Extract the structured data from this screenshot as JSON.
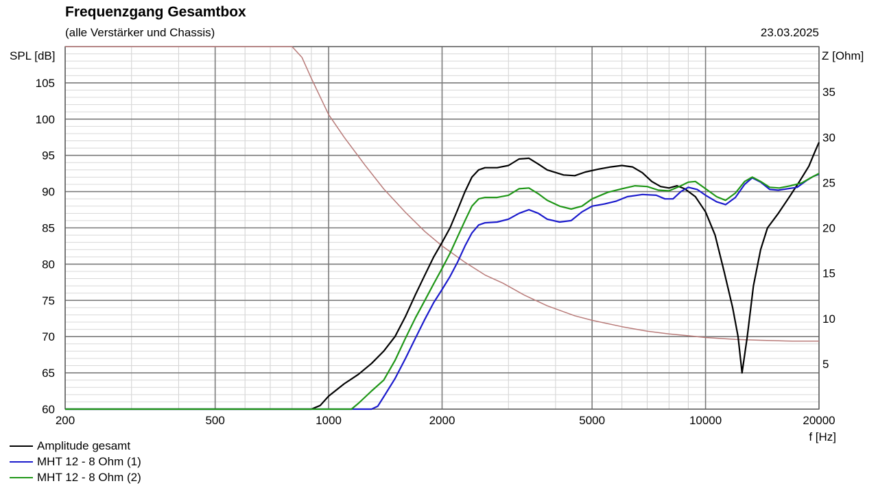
{
  "header": {
    "title": "Frequenzgang Gesamtbox",
    "subtitle": "(alle Verstärker und Chassis)",
    "date": "23.03.2025"
  },
  "chart_data": {
    "type": "line",
    "title": "Frequenzgang Gesamtbox",
    "subtitle": "(alle Verstärker und Chassis)",
    "xlabel": "f [Hz]",
    "ylabel": "SPL [dB]",
    "y2label": "Z [Ohm]",
    "xscale": "log",
    "xlim": [
      200,
      20000
    ],
    "ylim": [
      60,
      110
    ],
    "y2lim": [
      0,
      40
    ],
    "xticks": [
      200,
      500,
      1000,
      2000,
      5000,
      10000,
      20000
    ],
    "xtick_labels": [
      "200",
      "500",
      "1000",
      "2000",
      "5000",
      "10000",
      "20000"
    ],
    "yticks": [
      60,
      65,
      70,
      75,
      80,
      85,
      90,
      95,
      100,
      105
    ],
    "y2ticks": [
      5,
      10,
      15,
      20,
      25,
      30,
      35
    ],
    "grid": true,
    "legend_position": "bottom-left",
    "series": [
      {
        "name": "Amplitude gesamt",
        "color": "#000000",
        "axis": "left",
        "points": [
          [
            200,
            60
          ],
          [
            900,
            60
          ],
          [
            950,
            60.5
          ],
          [
            1000,
            61.8
          ],
          [
            1100,
            63.5
          ],
          [
            1200,
            64.8
          ],
          [
            1300,
            66.3
          ],
          [
            1400,
            68
          ],
          [
            1500,
            70
          ],
          [
            1600,
            72.8
          ],
          [
            1700,
            75.8
          ],
          [
            1800,
            78.5
          ],
          [
            1900,
            81
          ],
          [
            2000,
            83
          ],
          [
            2100,
            85
          ],
          [
            2200,
            87.5
          ],
          [
            2300,
            90
          ],
          [
            2400,
            92
          ],
          [
            2500,
            93
          ],
          [
            2600,
            93.3
          ],
          [
            2800,
            93.3
          ],
          [
            3000,
            93.6
          ],
          [
            3200,
            94.5
          ],
          [
            3400,
            94.6
          ],
          [
            3600,
            93.8
          ],
          [
            3800,
            93
          ],
          [
            4200,
            92.3
          ],
          [
            4500,
            92.2
          ],
          [
            4800,
            92.7
          ],
          [
            5200,
            93.1
          ],
          [
            5600,
            93.4
          ],
          [
            6000,
            93.6
          ],
          [
            6400,
            93.4
          ],
          [
            6800,
            92.6
          ],
          [
            7200,
            91.4
          ],
          [
            7600,
            90.7
          ],
          [
            8000,
            90.5
          ],
          [
            8400,
            90.8
          ],
          [
            8800,
            90.4
          ],
          [
            9400,
            89.3
          ],
          [
            10000,
            87.2
          ],
          [
            10600,
            84
          ],
          [
            11200,
            79
          ],
          [
            11800,
            74
          ],
          [
            12200,
            70
          ],
          [
            12500,
            65
          ],
          [
            12900,
            70
          ],
          [
            13400,
            77
          ],
          [
            14000,
            82
          ],
          [
            14600,
            85
          ],
          [
            15600,
            87
          ],
          [
            16800,
            89.5
          ],
          [
            17800,
            91.5
          ],
          [
            18800,
            93.5
          ],
          [
            19500,
            95.5
          ],
          [
            20000,
            96.8
          ]
        ]
      },
      {
        "name": "MHT 12 - 8 Ohm (1)",
        "color": "#1a1acc",
        "axis": "left",
        "points": [
          [
            200,
            60
          ],
          [
            1300,
            60
          ],
          [
            1350,
            60.4
          ],
          [
            1400,
            61.7
          ],
          [
            1500,
            64.2
          ],
          [
            1600,
            67
          ],
          [
            1700,
            69.8
          ],
          [
            1800,
            72.4
          ],
          [
            1900,
            74.7
          ],
          [
            2000,
            76.5
          ],
          [
            2100,
            78.3
          ],
          [
            2200,
            80.3
          ],
          [
            2300,
            82.5
          ],
          [
            2400,
            84.3
          ],
          [
            2500,
            85.4
          ],
          [
            2600,
            85.7
          ],
          [
            2800,
            85.8
          ],
          [
            3000,
            86.2
          ],
          [
            3200,
            87
          ],
          [
            3400,
            87.5
          ],
          [
            3600,
            87
          ],
          [
            3800,
            86.2
          ],
          [
            4100,
            85.8
          ],
          [
            4400,
            86
          ],
          [
            4700,
            87.2
          ],
          [
            5000,
            88
          ],
          [
            5400,
            88.3
          ],
          [
            5800,
            88.7
          ],
          [
            6200,
            89.3
          ],
          [
            6800,
            89.6
          ],
          [
            7400,
            89.5
          ],
          [
            7800,
            89
          ],
          [
            8200,
            89
          ],
          [
            8600,
            90
          ],
          [
            9000,
            90.6
          ],
          [
            9500,
            90.3
          ],
          [
            10000,
            89.5
          ],
          [
            10700,
            88.6
          ],
          [
            11300,
            88.2
          ],
          [
            12000,
            89.2
          ],
          [
            12700,
            91
          ],
          [
            13300,
            91.9
          ],
          [
            14000,
            91.3
          ],
          [
            14800,
            90.3
          ],
          [
            15600,
            90.2
          ],
          [
            16500,
            90.4
          ],
          [
            17500,
            90.6
          ],
          [
            18500,
            91.5
          ],
          [
            19300,
            92.1
          ],
          [
            20000,
            92.4
          ]
        ]
      },
      {
        "name": "MHT 12 - 8 Ohm (2)",
        "color": "#1e9616",
        "axis": "left",
        "points": [
          [
            200,
            60
          ],
          [
            1150,
            60
          ],
          [
            1200,
            60.8
          ],
          [
            1300,
            62.5
          ],
          [
            1400,
            64
          ],
          [
            1500,
            66.7
          ],
          [
            1600,
            69.8
          ],
          [
            1700,
            72.6
          ],
          [
            1800,
            75
          ],
          [
            1900,
            77.3
          ],
          [
            2000,
            79.4
          ],
          [
            2100,
            81.5
          ],
          [
            2200,
            83.8
          ],
          [
            2300,
            86
          ],
          [
            2400,
            88
          ],
          [
            2500,
            89
          ],
          [
            2600,
            89.2
          ],
          [
            2800,
            89.2
          ],
          [
            3000,
            89.5
          ],
          [
            3200,
            90.4
          ],
          [
            3400,
            90.5
          ],
          [
            3600,
            89.7
          ],
          [
            3800,
            88.8
          ],
          [
            4100,
            88
          ],
          [
            4400,
            87.6
          ],
          [
            4700,
            88
          ],
          [
            5000,
            89
          ],
          [
            5500,
            89.9
          ],
          [
            6000,
            90.4
          ],
          [
            6500,
            90.8
          ],
          [
            7000,
            90.7
          ],
          [
            7500,
            90.2
          ],
          [
            8000,
            90.1
          ],
          [
            8600,
            90.8
          ],
          [
            9000,
            91.3
          ],
          [
            9400,
            91.4
          ],
          [
            10000,
            90.4
          ],
          [
            10700,
            89.3
          ],
          [
            11300,
            88.8
          ],
          [
            12000,
            89.8
          ],
          [
            12700,
            91.4
          ],
          [
            13300,
            92
          ],
          [
            14000,
            91.4
          ],
          [
            14800,
            90.6
          ],
          [
            15700,
            90.5
          ],
          [
            16800,
            90.8
          ],
          [
            18000,
            91.2
          ],
          [
            19000,
            91.9
          ],
          [
            20000,
            92.5
          ]
        ]
      },
      {
        "name": "",
        "color": "#b87a78",
        "axis": "right",
        "points": [
          [
            200,
            40
          ],
          [
            800,
            40
          ],
          [
            850,
            38.8
          ],
          [
            900,
            36.5
          ],
          [
            1000,
            32.5
          ],
          [
            1100,
            30
          ],
          [
            1250,
            26.9
          ],
          [
            1400,
            24.3
          ],
          [
            1600,
            21.7
          ],
          [
            1800,
            19.6
          ],
          [
            2000,
            18
          ],
          [
            2300,
            16.2
          ],
          [
            2600,
            14.8
          ],
          [
            2900,
            13.9
          ],
          [
            3300,
            12.6
          ],
          [
            3800,
            11.4
          ],
          [
            4500,
            10.3
          ],
          [
            5000,
            9.8
          ],
          [
            6000,
            9.1
          ],
          [
            7000,
            8.6
          ],
          [
            8000,
            8.3
          ],
          [
            9000,
            8.1
          ],
          [
            10000,
            7.9
          ],
          [
            12000,
            7.7
          ],
          [
            14000,
            7.6
          ],
          [
            17000,
            7.5
          ],
          [
            20000,
            7.5
          ]
        ]
      }
    ]
  },
  "legend": {
    "items": [
      {
        "label": "Amplitude gesamt",
        "color": "#000000"
      },
      {
        "label": "MHT 12 - 8 Ohm (1)",
        "color": "#1a1acc"
      },
      {
        "label": "MHT 12 - 8 Ohm (2)",
        "color": "#1e9616"
      }
    ]
  }
}
